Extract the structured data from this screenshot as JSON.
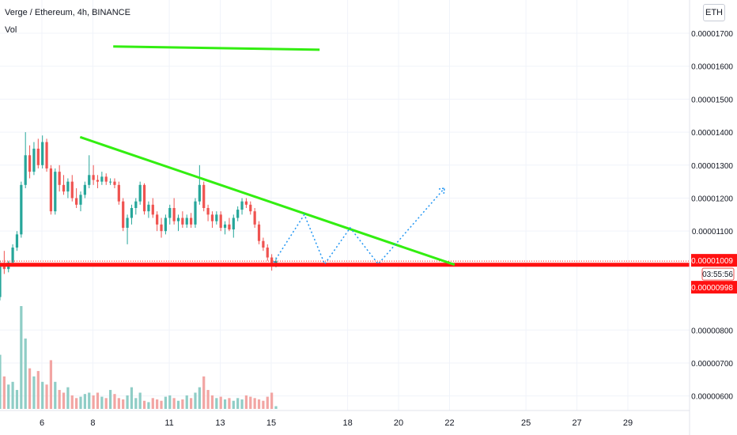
{
  "header": {
    "title": "Verge / Ethereum, 4h, BINANCE",
    "volume_label": "Vol",
    "currency_button": "ETH"
  },
  "price_axis": {
    "ticks": [
      "0.00001700",
      "0.00001600",
      "0.00001500",
      "0.00001400",
      "0.00001300",
      "0.00001200",
      "0.00001100",
      "0.00000800",
      "0.00000700",
      "0.00000600"
    ],
    "tick_values": [
      1700,
      1600,
      1500,
      1400,
      1300,
      1200,
      1100,
      800,
      700,
      600
    ],
    "last_price_label": "0.00001009",
    "countdown_label": "03:55:56",
    "support_price_label": "0.00000998"
  },
  "time_axis": {
    "ticks": [
      "6",
      "8",
      "11",
      "13",
      "15",
      "18",
      "20",
      "22",
      "25",
      "27",
      "29"
    ]
  },
  "colors": {
    "up": "#26a69a",
    "down": "#ef5350",
    "volume_up": "#8fcdc6",
    "volume_down": "#f2a5a3",
    "trendline": "#33ee11",
    "support": "#ff1111",
    "projection": "#2196f3",
    "price_label_bg": "#ff1111"
  },
  "chart_data": {
    "type": "candlestick",
    "title": "Verge / Ethereum, 4h, BINANCE",
    "price_unit_note": "prices in units of 1e-8 ETH",
    "y_range": [
      580,
      1760
    ],
    "x_tick_days": [
      6,
      8,
      11,
      13,
      15,
      18,
      20,
      22,
      25,
      27,
      29
    ],
    "candles": [
      [
        930,
        945,
        905,
        915
      ],
      [
        915,
        925,
        900,
        910
      ],
      [
        910,
        915,
        870,
        880
      ],
      [
        880,
        895,
        860,
        875
      ],
      [
        875,
        890,
        860,
        870
      ],
      [
        870,
        885,
        855,
        880
      ],
      [
        880,
        890,
        860,
        865
      ],
      [
        865,
        880,
        850,
        870
      ],
      [
        870,
        880,
        845,
        860
      ],
      [
        860,
        870,
        830,
        850
      ],
      [
        850,
        870,
        840,
        860
      ],
      [
        860,
        875,
        845,
        855
      ],
      [
        855,
        870,
        820,
        830
      ],
      [
        830,
        850,
        790,
        800
      ],
      [
        800,
        830,
        795,
        820
      ],
      [
        820,
        860,
        810,
        850
      ],
      [
        850,
        880,
        830,
        870
      ],
      [
        870,
        910,
        860,
        900
      ],
      [
        900,
        1010,
        890,
        1000
      ],
      [
        1000,
        1040,
        970,
        985
      ],
      [
        985,
        1010,
        975,
        1005
      ],
      [
        1005,
        1060,
        995,
        1050
      ],
      [
        1050,
        1100,
        1040,
        1090
      ],
      [
        1090,
        1250,
        1080,
        1240
      ],
      [
        1240,
        1400,
        1230,
        1330
      ],
      [
        1330,
        1360,
        1260,
        1280
      ],
      [
        1280,
        1370,
        1270,
        1350
      ],
      [
        1350,
        1380,
        1290,
        1300
      ],
      [
        1300,
        1390,
        1290,
        1370
      ],
      [
        1370,
        1380,
        1280,
        1290
      ],
      [
        1290,
        1300,
        1150,
        1160
      ],
      [
        1160,
        1290,
        1150,
        1280
      ],
      [
        1280,
        1300,
        1220,
        1240
      ],
      [
        1240,
        1270,
        1210,
        1220
      ],
      [
        1220,
        1260,
        1200,
        1250
      ],
      [
        1250,
        1270,
        1190,
        1200
      ],
      [
        1200,
        1230,
        1170,
        1180
      ],
      [
        1180,
        1220,
        1160,
        1210
      ],
      [
        1210,
        1250,
        1200,
        1240
      ],
      [
        1240,
        1330,
        1230,
        1270
      ],
      [
        1270,
        1300,
        1240,
        1255
      ],
      [
        1255,
        1270,
        1230,
        1250
      ],
      [
        1250,
        1280,
        1240,
        1265
      ],
      [
        1265,
        1275,
        1240,
        1250
      ],
      [
        1250,
        1260,
        1240,
        1250
      ],
      [
        1250,
        1260,
        1230,
        1240
      ],
      [
        1240,
        1250,
        1180,
        1190
      ],
      [
        1190,
        1200,
        1100,
        1110
      ],
      [
        1110,
        1150,
        1060,
        1140
      ],
      [
        1140,
        1180,
        1120,
        1170
      ],
      [
        1170,
        1200,
        1150,
        1190
      ],
      [
        1190,
        1250,
        1180,
        1240
      ],
      [
        1240,
        1245,
        1150,
        1160
      ],
      [
        1160,
        1190,
        1140,
        1180
      ],
      [
        1180,
        1200,
        1140,
        1150
      ],
      [
        1150,
        1160,
        1100,
        1120
      ],
      [
        1120,
        1140,
        1080,
        1100
      ],
      [
        1100,
        1150,
        1090,
        1140
      ],
      [
        1140,
        1180,
        1120,
        1170
      ],
      [
        1170,
        1200,
        1120,
        1130
      ],
      [
        1130,
        1150,
        1100,
        1140
      ],
      [
        1140,
        1160,
        1110,
        1120
      ],
      [
        1120,
        1150,
        1110,
        1140
      ],
      [
        1140,
        1155,
        1110,
        1120
      ],
      [
        1120,
        1200,
        1110,
        1190
      ],
      [
        1190,
        1300,
        1180,
        1240
      ],
      [
        1240,
        1250,
        1160,
        1170
      ],
      [
        1170,
        1180,
        1130,
        1150
      ],
      [
        1150,
        1160,
        1110,
        1130
      ],
      [
        1130,
        1160,
        1120,
        1150
      ],
      [
        1150,
        1160,
        1100,
        1110
      ],
      [
        1110,
        1130,
        1090,
        1120
      ],
      [
        1120,
        1140,
        1100,
        1105
      ],
      [
        1105,
        1150,
        1080,
        1140
      ],
      [
        1140,
        1175,
        1130,
        1165
      ],
      [
        1165,
        1200,
        1150,
        1190
      ],
      [
        1190,
        1200,
        1170,
        1180
      ],
      [
        1180,
        1190,
        1150,
        1160
      ],
      [
        1160,
        1170,
        1110,
        1120
      ],
      [
        1120,
        1130,
        1060,
        1070
      ],
      [
        1070,
        1080,
        1040,
        1050
      ],
      [
        1050,
        1060,
        1010,
        1020
      ],
      [
        1020,
        1030,
        980,
        1000
      ],
      [
        1000,
        1020,
        990,
        1009
      ]
    ],
    "volumes": [
      40,
      60,
      50,
      30,
      45,
      35,
      50,
      40,
      30,
      55,
      45,
      35,
      40,
      30,
      60,
      80,
      50,
      70,
      200,
      120,
      90,
      100,
      70,
      380,
      260,
      150,
      120,
      140,
      100,
      90,
      180,
      100,
      70,
      60,
      80,
      50,
      40,
      45,
      55,
      60,
      50,
      60,
      45,
      40,
      70,
      55,
      40,
      35,
      50,
      80,
      40,
      60,
      30,
      25,
      40,
      35,
      30,
      45,
      50,
      40,
      30,
      35,
      50,
      40,
      60,
      80,
      120,
      70,
      50,
      40,
      45,
      35,
      40,
      30,
      40,
      35,
      50,
      45,
      40,
      35,
      30,
      45,
      60,
      10
    ],
    "trendlines": [
      {
        "points": [
          [
            7.5,
            1385
          ],
          [
            22.2,
            998
          ]
        ]
      },
      {
        "points": [
          [
            8.8,
            1660
          ],
          [
            16.9,
            1650
          ]
        ]
      }
    ],
    "support_level": 998,
    "last_price": 1009,
    "projection_path": [
      [
        15.1,
        1005
      ],
      [
        16.3,
        1150
      ],
      [
        17.1,
        1000
      ],
      [
        18.1,
        1110
      ],
      [
        19.2,
        1000
      ],
      [
        21.8,
        1230
      ]
    ]
  }
}
